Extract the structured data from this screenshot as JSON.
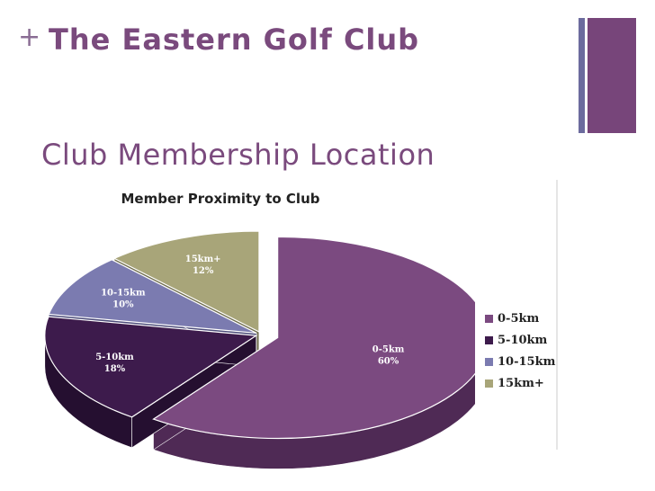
{
  "header": {
    "plus": "+",
    "title": "The Eastern Golf Club"
  },
  "subtitle": "Club Membership Location",
  "chart_data": {
    "type": "pie",
    "title": "Member Proximity to Club",
    "slices": [
      {
        "label": "0-5km",
        "value": 60,
        "value_label": "60%",
        "color": "#7b4a80",
        "side": "#4f2a55"
      },
      {
        "label": "5-10km",
        "value": 18,
        "value_label": "18%",
        "color": "#3d1b4c",
        "side": "#250f30"
      },
      {
        "label": "10-15km",
        "value": 10,
        "value_label": "10%",
        "color": "#7b7bb0",
        "side": "#4d4d7a"
      },
      {
        "label": "15km+",
        "value": 12,
        "value_label": "12%",
        "color": "#a8a579",
        "side": "#6e6c4c"
      }
    ],
    "legend_position": "right",
    "style": "3d-exploded"
  },
  "colors": {
    "accent_purple": "#77457a",
    "accent_blue": "#6c6b9e"
  }
}
